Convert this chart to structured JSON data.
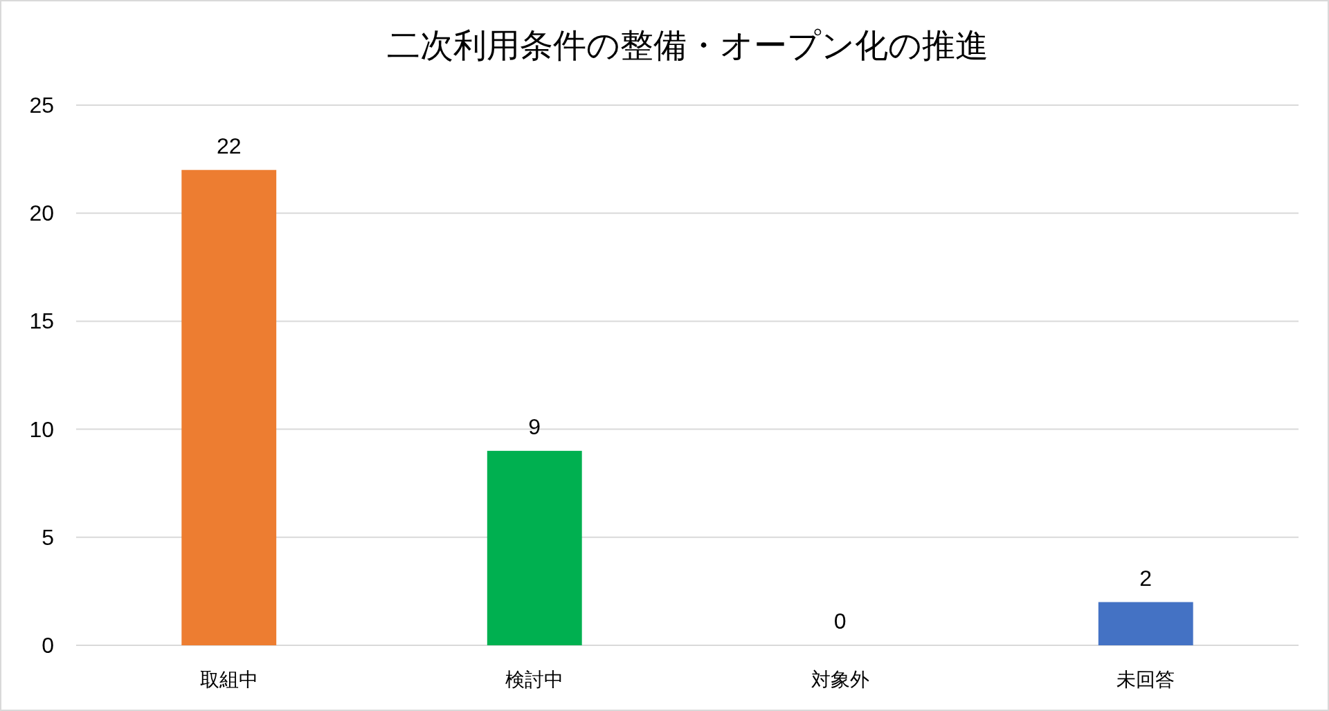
{
  "chart_data": {
    "type": "bar",
    "title": "二次利用条件の整備・オープン化の推進",
    "categories": [
      "取組中",
      "検討中",
      "対象外",
      "未回答"
    ],
    "values": [
      22,
      9,
      0,
      2
    ],
    "colors": [
      "#ed7d31",
      "#00b050",
      "#a5a5a5",
      "#4472c4"
    ],
    "ylim": [
      0,
      25
    ],
    "yticks": [
      0,
      5,
      10,
      15,
      20,
      25
    ],
    "grid": "y",
    "data_labels": true
  }
}
